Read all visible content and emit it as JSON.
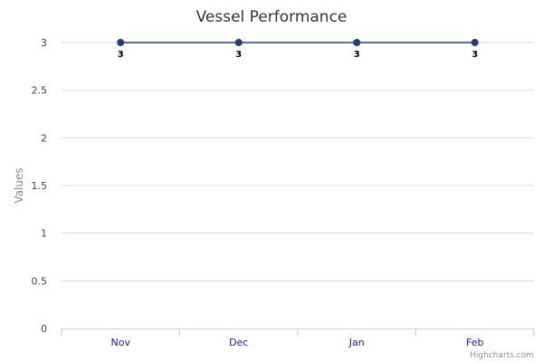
{
  "chart_data": {
    "type": "line",
    "title": "Vessel Performance",
    "xlabel": "",
    "ylabel": "Values",
    "categories": [
      "Nov",
      "Dec",
      "Jan",
      "Feb"
    ],
    "series": [
      {
        "values": [
          3,
          3,
          3,
          3
        ]
      }
    ],
    "ylim": [
      0,
      3
    ],
    "yticks": [
      "0",
      "0.5",
      "1",
      "1.5",
      "2",
      "2.5",
      "3"
    ],
    "data_labels": [
      "3",
      "3",
      "3",
      "3"
    ],
    "grid": true,
    "legend": "none"
  },
  "colors": {
    "series": "#1f3f7a",
    "grid": "#d8d8d8",
    "axis": "#c0d0e0"
  },
  "credits": "Highcharts.com"
}
